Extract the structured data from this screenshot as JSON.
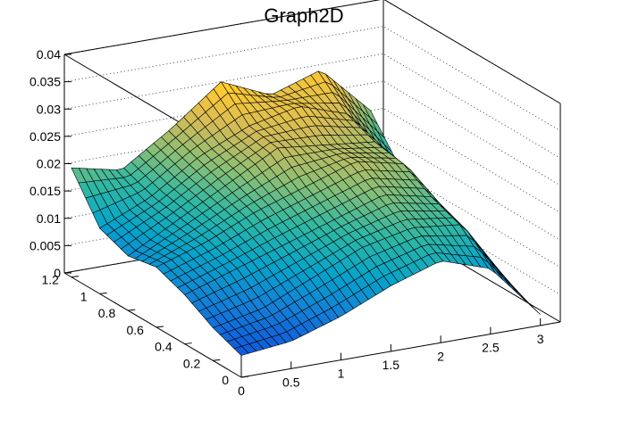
{
  "chart_data": {
    "type": "surface",
    "title": "Graph2D",
    "x": [
      0.0,
      0.5,
      1.0,
      1.5,
      2.0,
      2.5,
      3.0
    ],
    "y": [
      1.2,
      1.0,
      0.8,
      0.6,
      0.4,
      0.2,
      0.0
    ],
    "xlim": [
      0,
      3.2
    ],
    "ylim": [
      0,
      1.25
    ],
    "zlim": [
      0,
      0.04
    ],
    "x_ticks": [
      "0",
      "0.5",
      "1",
      "1.5",
      "2",
      "2.5",
      "3"
    ],
    "y_ticks": [
      "1.2",
      "1",
      "0.8",
      "0.6",
      "0.4",
      "0.2",
      "0"
    ],
    "z_ticks": [
      "0",
      "0.005",
      "0.01",
      "0.015",
      "0.02",
      "0.025",
      "0.03",
      "0.035",
      "0.04"
    ],
    "z": [
      [
        0.02,
        0.018,
        0.024,
        0.031,
        0.027,
        0.03,
        0.021
      ],
      [
        0.012,
        0.016,
        0.022,
        0.026,
        0.028,
        0.025,
        0.014
      ],
      [
        0.01,
        0.015,
        0.02,
        0.025,
        0.024,
        0.023,
        0.012
      ],
      [
        0.011,
        0.014,
        0.018,
        0.021,
        0.024,
        0.022,
        0.009
      ],
      [
        0.009,
        0.012,
        0.015,
        0.018,
        0.021,
        0.019,
        0.007
      ],
      [
        0.006,
        0.008,
        0.012,
        0.016,
        0.018,
        0.017,
        0.004
      ],
      [
        0.004,
        0.005,
        0.008,
        0.012,
        0.015,
        0.012,
        0.002
      ]
    ],
    "colormap": [
      "#352a87",
      "#0f5cdd",
      "#1481d6",
      "#06a4ca",
      "#2eb7a4",
      "#87bf77",
      "#d1bb59",
      "#fec832",
      "#f9fb0e"
    ],
    "grid": true
  }
}
